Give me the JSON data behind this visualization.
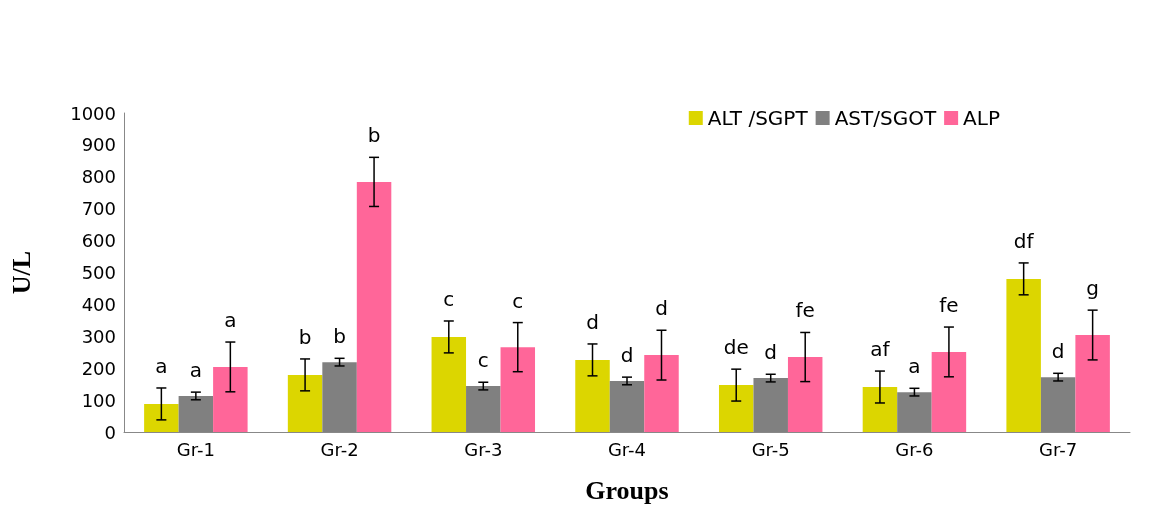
{
  "chart_data": {
    "type": "bar",
    "xlabel": "Groups",
    "ylabel": "U/L",
    "categories": [
      "Gr-1",
      "Gr-2",
      "Gr-3",
      "Gr-4",
      "Gr-5",
      "Gr-6",
      "Gr-7"
    ],
    "series": [
      {
        "name": "ALT /SGPT",
        "color": "#dcd600",
        "values": [
          88,
          179,
          298,
          226,
          147,
          141,
          480
        ],
        "errors": [
          50,
          50,
          50,
          50,
          50,
          50,
          50
        ],
        "value_labels": [
          "a",
          "b",
          "c",
          "d",
          "de",
          "af",
          "df"
        ]
      },
      {
        "name": "AST/SGOT",
        "color": "#808080",
        "values": [
          113,
          219,
          144,
          160,
          169,
          125,
          172
        ],
        "errors": [
          12,
          12,
          12,
          12,
          12,
          12,
          12
        ],
        "value_labels": [
          "a",
          "b",
          "c",
          "d",
          "d",
          "a",
          "d"
        ]
      },
      {
        "name": "ALP",
        "color": "#ff6699",
        "values": [
          204,
          784,
          266,
          241,
          235,
          251,
          304
        ],
        "errors": [
          78,
          77,
          77,
          78,
          77,
          78,
          78
        ],
        "value_labels": [
          "a",
          "b",
          "c",
          "d",
          "fe",
          "fe",
          "g"
        ]
      }
    ],
    "ylim": [
      0,
      1000
    ],
    "yticks": [
      0,
      100,
      200,
      300,
      400,
      500,
      600,
      700,
      800,
      900,
      1000
    ],
    "grid": false,
    "legend": "top right"
  }
}
